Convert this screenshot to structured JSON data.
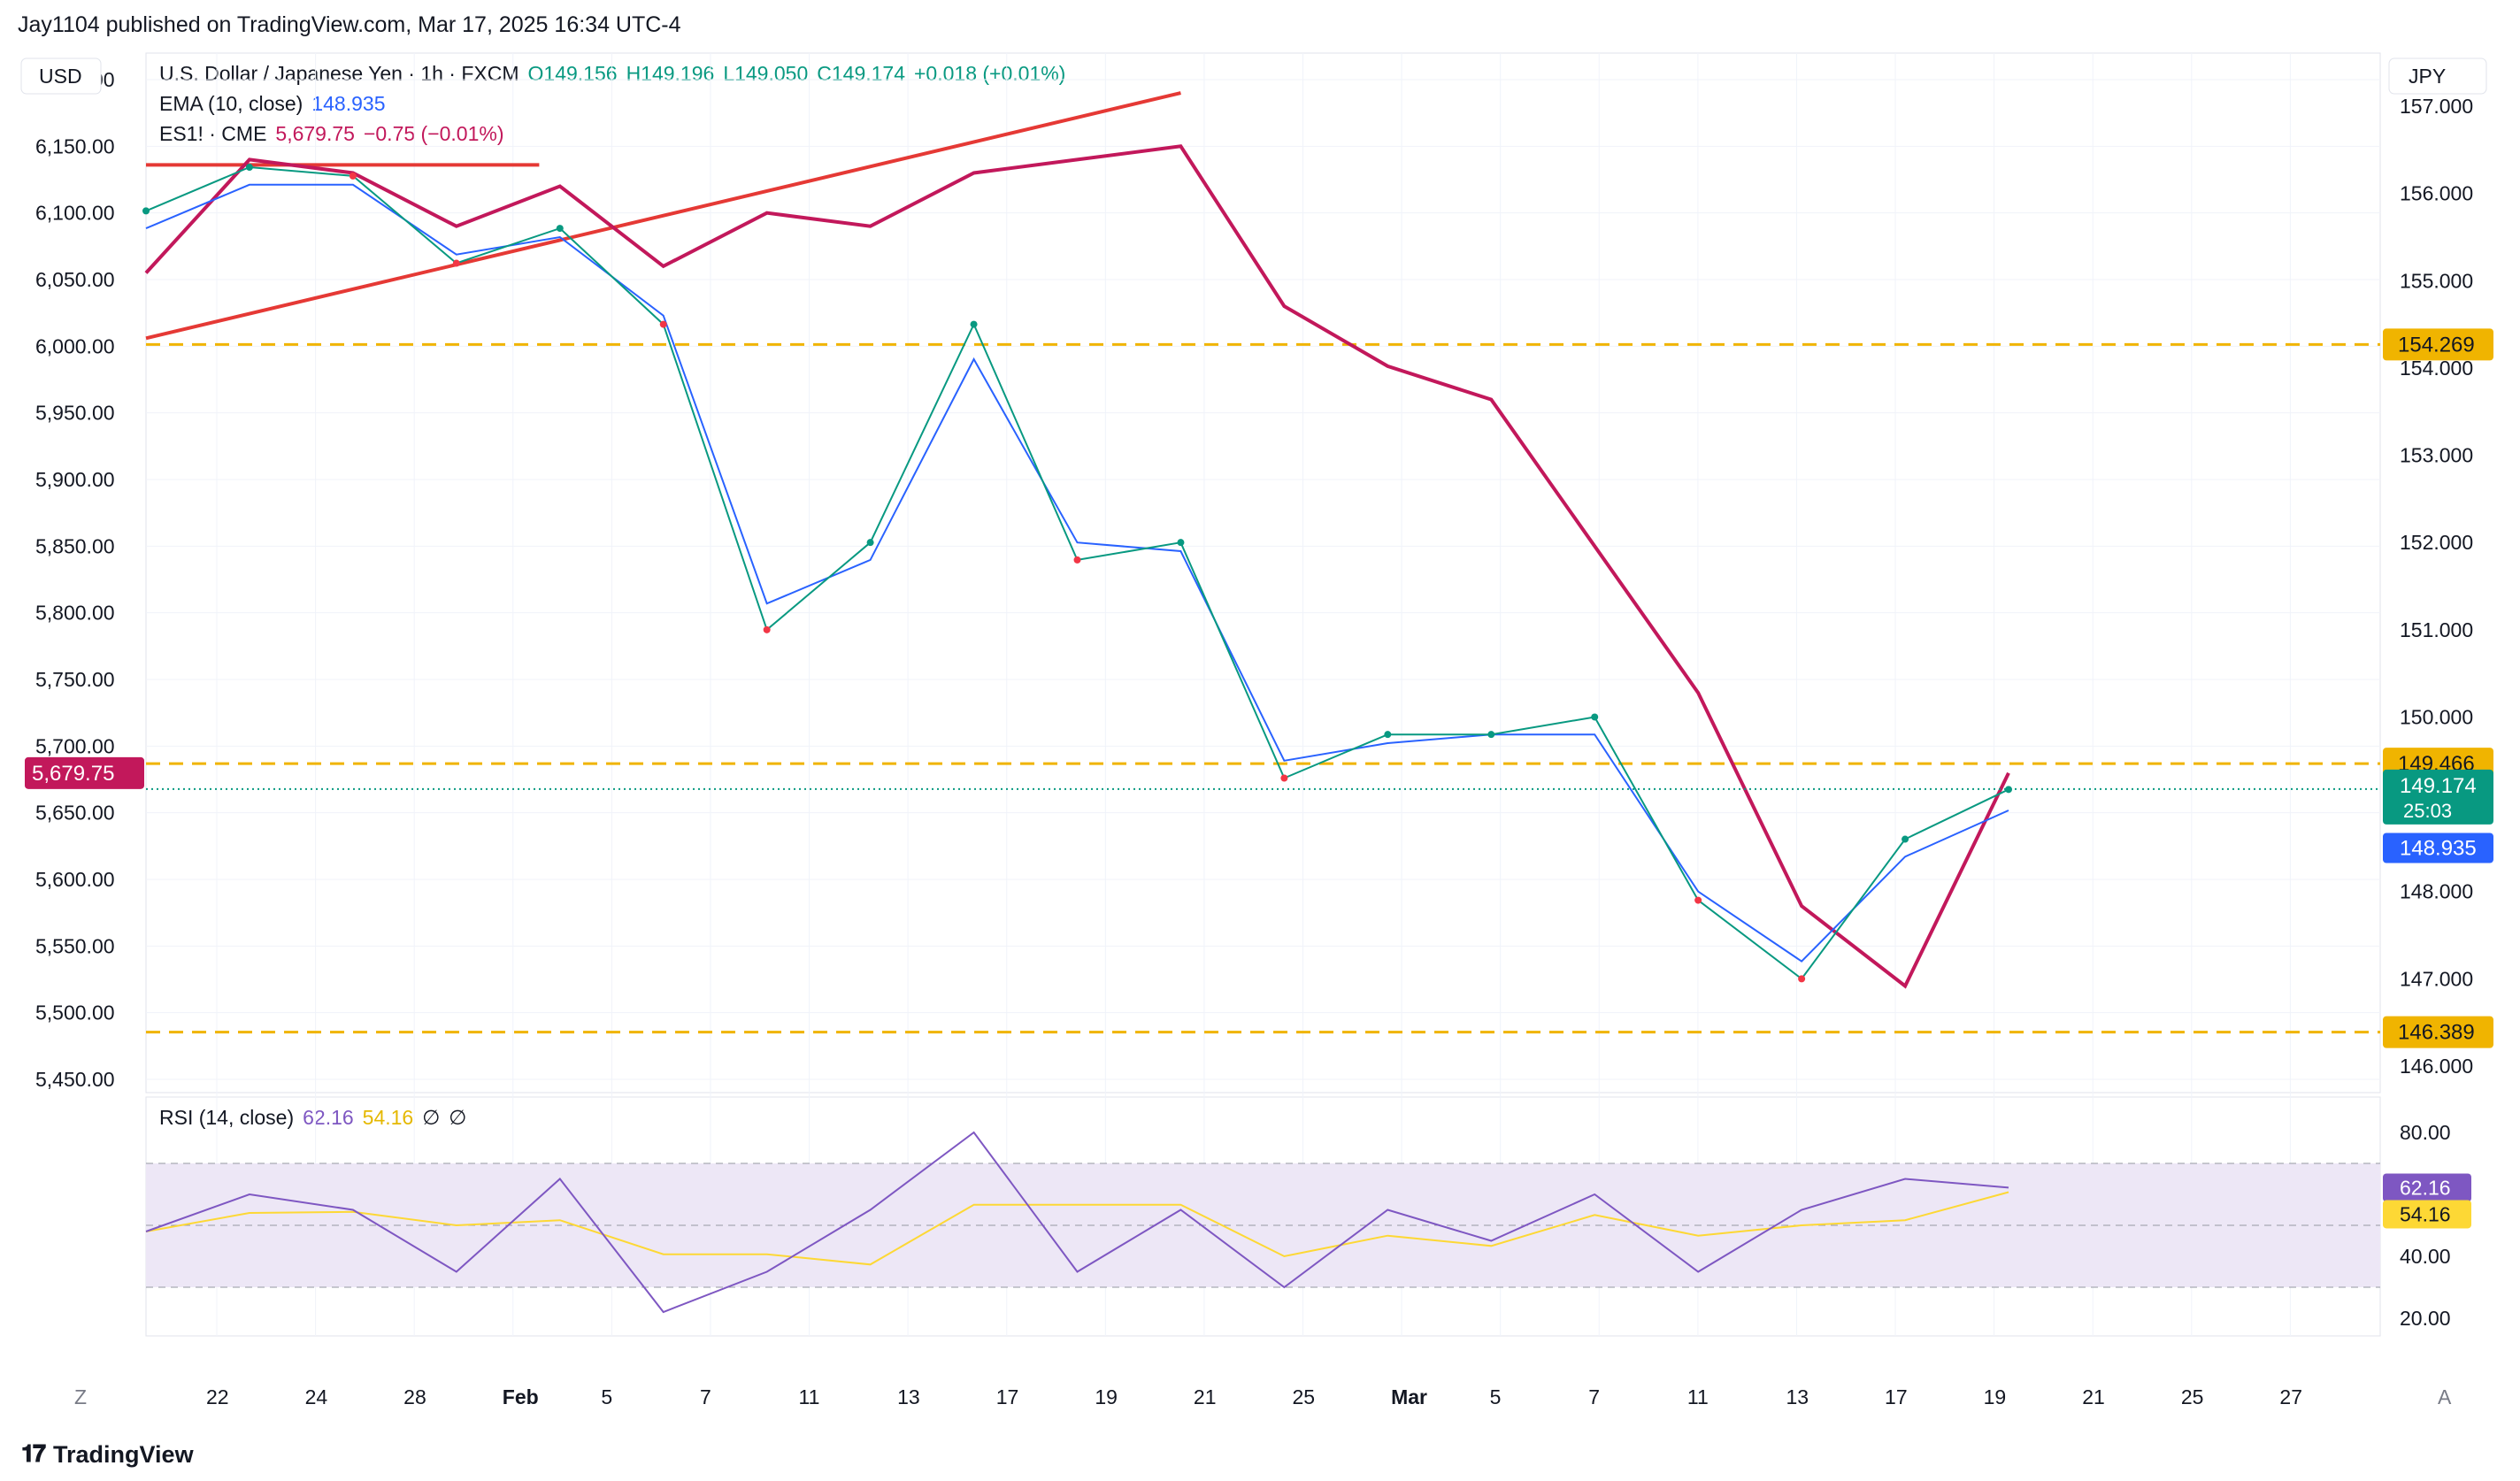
{
  "header": {
    "publish_text": "Jay1104 published on TradingView.com, Mar 17, 2025 16:34 UTC-4"
  },
  "legend": {
    "main": {
      "symbol": "U.S. Dollar / Japanese Yen · 1h · FXCM",
      "o": "O149.156",
      "h": "H149.196",
      "l": "L149.050",
      "c": "C149.174",
      "chg": "+0.018 (+0.01%)"
    },
    "ema": {
      "label": "EMA (10, close)",
      "value": "148.935"
    },
    "es": {
      "label": "ES1! · CME",
      "value": "5,679.75",
      "chg": "−0.75 (−0.01%)"
    },
    "rsi": {
      "label": "RSI (14, close)",
      "value": "62.16",
      "ma": "54.16",
      "na1": "∅",
      "na2": "∅"
    }
  },
  "axes": {
    "left_unit": "USD",
    "right_unit": "JPY",
    "left_ticks": [
      "6,200.00",
      "6,150.00",
      "6,100.00",
      "6,050.00",
      "6,000.00",
      "5,950.00",
      "5,900.00",
      "5,850.00",
      "5,800.00",
      "5,750.00",
      "5,700.00",
      "5,650.00",
      "5,600.00",
      "5,550.00",
      "5,500.00",
      "5,450.00"
    ],
    "right_ticks": [
      "157.000",
      "156.000",
      "155.000",
      "154.000",
      "153.000",
      "152.000",
      "151.000",
      "150.000",
      "148.000",
      "147.000",
      "146.000"
    ],
    "rsi_ticks": [
      "80.00",
      "40.00",
      "20.00"
    ],
    "x_ticks": [
      "22",
      "24",
      "28",
      "Feb",
      "5",
      "7",
      "11",
      "13",
      "17",
      "19",
      "21",
      "25",
      "Mar",
      "5",
      "7",
      "11",
      "13",
      "17",
      "19",
      "21",
      "25",
      "27"
    ],
    "corner_left": "Z",
    "corner_right": "A"
  },
  "price_tags": {
    "left_es": "5,679.75",
    "right_levels": [
      "154.269",
      "149.466",
      "146.389"
    ],
    "right_last": "149.174",
    "right_countdown": "25:03",
    "right_ema": "148.935",
    "rsi_value": "62.16",
    "rsi_ma": "54.16"
  },
  "colors": {
    "usdjpy_up": "#089981",
    "usdjpy_down": "#f23645",
    "ema": "#2962ff",
    "es": "#c2185b",
    "trendline": "#e53935",
    "level": "#f0b400",
    "rsi": "#7e57c2",
    "rsi_ma": "#fdd835",
    "rsi_band": "#ede7f6"
  },
  "footer": {
    "brand": "TradingView",
    "logo": "𝟏𝟕"
  },
  "chart_data": {
    "type": "line",
    "x": [
      "Jan 20",
      "Jan 22",
      "Jan 24",
      "Jan 28",
      "Feb 1",
      "Feb 5",
      "Feb 7",
      "Feb 11",
      "Feb 13",
      "Feb 17",
      "Feb 19",
      "Feb 21",
      "Feb 25",
      "Mar 1",
      "Mar 5",
      "Mar 7",
      "Mar 11",
      "Mar 13",
      "Mar 17"
    ],
    "series": [
      {
        "name": "U.S. Dollar / Japanese Yen",
        "axis": "right",
        "values": [
          155.8,
          156.3,
          156.2,
          155.2,
          155.6,
          154.5,
          151.0,
          152.0,
          154.5,
          151.8,
          152.0,
          149.3,
          149.8,
          149.8,
          150.0,
          147.9,
          147.0,
          148.6,
          149.17
        ]
      },
      {
        "name": "EMA (10, close)",
        "axis": "right",
        "values": [
          155.6,
          156.1,
          156.1,
          155.3,
          155.5,
          154.6,
          151.3,
          151.8,
          154.1,
          152.0,
          151.9,
          149.5,
          149.7,
          149.8,
          149.8,
          148.0,
          147.2,
          148.4,
          148.93
        ]
      },
      {
        "name": "ES1! · CME",
        "axis": "left",
        "values": [
          6055,
          6140,
          6130,
          6090,
          6120,
          6060,
          6100,
          6090,
          6130,
          6140,
          6150,
          6030,
          5985,
          5960,
          5850,
          5740,
          5580,
          5520,
          5679.75
        ]
      },
      {
        "name": "RSI (14, close)",
        "axis": "rsi",
        "values": [
          48,
          60,
          55,
          35,
          65,
          22,
          35,
          55,
          80,
          35,
          55,
          30,
          55,
          45,
          60,
          35,
          55,
          65,
          62.16
        ]
      }
    ],
    "horizontal_levels": [
      154.269,
      149.466,
      146.389
    ],
    "trendlines": [
      {
        "from": [
          "Jan 20",
          6006
        ],
        "to": [
          "Feb 19",
          6190
        ]
      },
      {
        "from": [
          "Jan 20",
          6136
        ],
        "to": [
          "Jan 31",
          6136
        ]
      }
    ],
    "left_ylim": [
      5450,
      6200
    ],
    "right_ylim": [
      146.0,
      157.0
    ],
    "rsi_ylim": [
      20,
      80
    ],
    "rsi_band": [
      30,
      70
    ],
    "grid": true
  }
}
